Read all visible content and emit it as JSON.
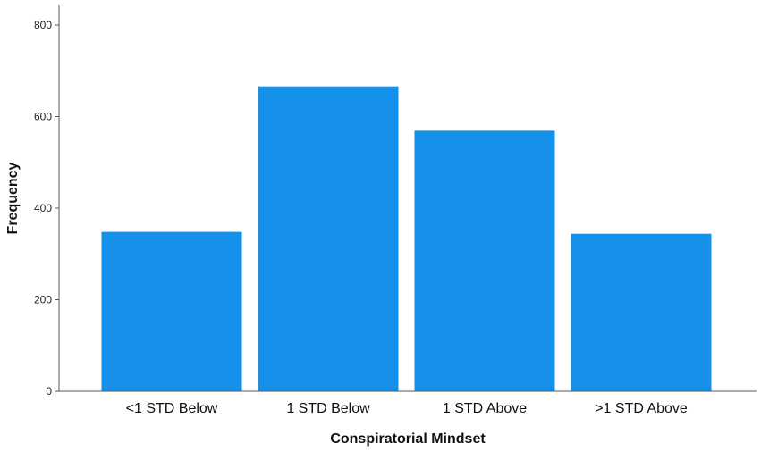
{
  "chart_data": {
    "type": "bar",
    "categories": [
      "<1 STD Below",
      "1 STD Below",
      "1 STD Above",
      ">1 STD Above"
    ],
    "values": [
      348,
      666,
      569,
      344
    ],
    "xlabel": "Conspiratorial Mindset",
    "ylabel": "Frequency",
    "ylim": [
      0,
      800
    ],
    "yticks": [
      0,
      200,
      400,
      600,
      800
    ],
    "grid": false,
    "bar_color": "#1591ea"
  }
}
